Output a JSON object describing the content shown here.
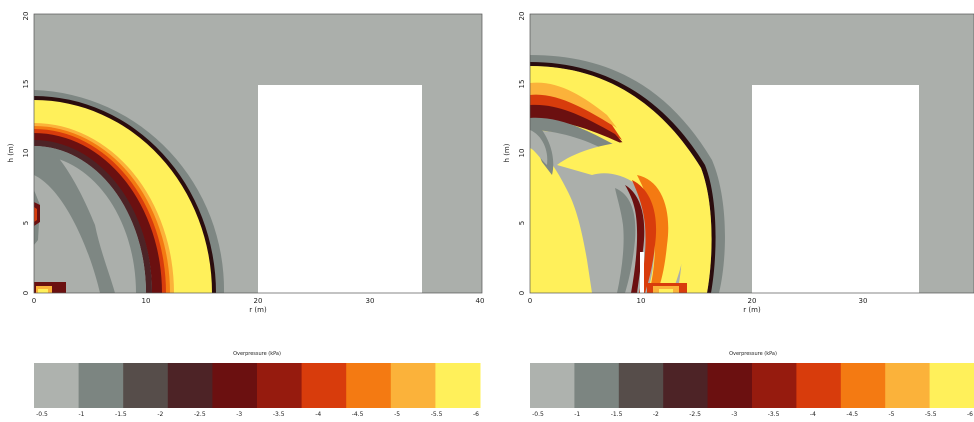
{
  "chart_data": [
    {
      "type": "heatmap",
      "xlabel": "r (m)",
      "ylabel": "h (m)",
      "xlim": [
        0,
        40
      ],
      "ylim": [
        0,
        20
      ],
      "x_ticks": [
        "0",
        "10",
        "20",
        "30",
        "40"
      ],
      "y_ticks": [
        "0",
        "5",
        "10",
        "15",
        "20"
      ],
      "obstacle": {
        "r_min": 20,
        "r_max": 35,
        "h_min": 0,
        "h_max": 15
      },
      "wall": null,
      "colorbar": {
        "title": "Overpressure (kPa)",
        "colors": [
          "#aeb2ae",
          "#7c8581",
          "#564d4a",
          "#4d2326",
          "#6b1010",
          "#961b0e",
          "#d83c0c",
          "#f47a12",
          "#fbb23a",
          "#fff05a"
        ],
        "tick_labels": [
          "-0.5",
          "-1",
          "-1.5",
          "-2",
          "-2.5",
          "-3",
          "-3.5",
          "-4",
          "-4.5",
          "-5",
          "-5.5",
          "-6"
        ]
      }
    },
    {
      "type": "heatmap",
      "xlabel": "r (m)",
      "ylabel": "h (m)",
      "xlim": [
        0,
        40
      ],
      "ylim": [
        0,
        20
      ],
      "x_ticks": [
        "0",
        "10",
        "20",
        "30"
      ],
      "y_ticks": [
        "0",
        "5",
        "10",
        "15",
        "20"
      ],
      "obstacle": {
        "r_min": 20,
        "r_max": 35,
        "h_min": 0,
        "h_max": 15
      },
      "wall": {
        "r": 10,
        "h_max": 3.7
      },
      "colorbar": {
        "title": "Overpressure (kPa)",
        "colors": [
          "#aeb2ae",
          "#7c8581",
          "#564d4a",
          "#4d2326",
          "#6b1010",
          "#961b0e",
          "#d83c0c",
          "#f47a12",
          "#fbb23a",
          "#fff05a"
        ],
        "tick_labels": [
          "-0.5",
          "-1",
          "-1.5",
          "-2",
          "-2.5",
          "-3",
          "-3.5",
          "-4",
          "-4.5",
          "-5",
          "-5.5",
          "-6"
        ]
      }
    }
  ]
}
